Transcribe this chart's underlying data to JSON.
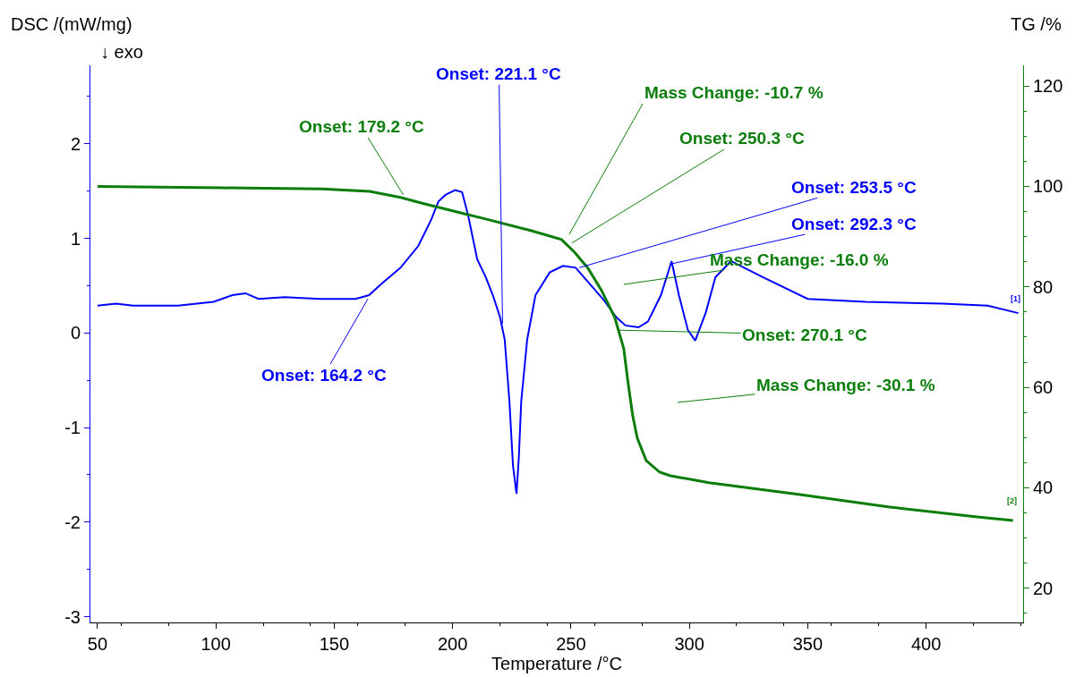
{
  "chart_data": {
    "type": "line",
    "xlabel": "Temperature /°C",
    "ylabel": "DSC /(mW/mg)",
    "y2label": "TG /%",
    "xlim": [
      47,
      441
    ],
    "xticks": [
      50,
      100,
      150,
      200,
      250,
      300,
      350,
      400
    ],
    "ylim": [
      -3.06,
      2.83
    ],
    "yticks": [
      -3,
      -2,
      -1,
      0,
      1,
      2
    ],
    "y2lim": [
      13.2,
      124.1
    ],
    "y2ticks": [
      20,
      40,
      60,
      80,
      100,
      120
    ],
    "grid": false,
    "marker": "none",
    "line_style": "solid",
    "series": [
      {
        "color": "#0000ff",
        "x": [
          50,
          57.8,
          65,
          84,
          99,
          107,
          112.5,
          118,
          129,
          144,
          159,
          164.7,
          170,
          178,
          185.5,
          191,
          194,
          197,
          201,
          204,
          206.5,
          210.4,
          214,
          217,
          220,
          222,
          224,
          225.5,
          227,
          228,
          229,
          231.5,
          235,
          241,
          246.6,
          252,
          257.9,
          263.5,
          269,
          273,
          278.5,
          282.5,
          288,
          292.5,
          295.6,
          299.4,
          302.5,
          307,
          311,
          317.6,
          331,
          350,
          374.5,
          407,
          426,
          439
        ],
        "values": [
          0.29,
          0.31,
          0.29,
          0.29,
          0.33,
          0.4,
          0.42,
          0.36,
          0.38,
          0.36,
          0.36,
          0.4,
          0.52,
          0.69,
          0.92,
          1.2,
          1.39,
          1.46,
          1.51,
          1.49,
          1.25,
          0.78,
          0.59,
          0.4,
          0.17,
          -0.07,
          -0.72,
          -1.4,
          -1.7,
          -1.3,
          -0.72,
          -0.07,
          0.4,
          0.64,
          0.71,
          0.69,
          0.52,
          0.36,
          0.17,
          0.08,
          0.06,
          0.12,
          0.4,
          0.76,
          0.4,
          0.03,
          -0.08,
          0.22,
          0.59,
          0.76,
          0.59,
          0.36,
          0.33,
          0.31,
          0.29,
          0.21
        ]
      },
      {
        "color": "#0a7d0a",
        "axis": "y2",
        "x": [
          50,
          103,
          145,
          165,
          178,
          187.5,
          198.5,
          214,
          233,
          246,
          251.5,
          257.2,
          262.9,
          268.5,
          272.3,
          274.2,
          276.1,
          278,
          281.8,
          287.5,
          292,
          308.3,
          346,
          384,
          421.6,
          436.7
        ],
        "values": [
          100,
          99.7,
          99.5,
          99,
          97.8,
          96.6,
          95.3,
          93.5,
          91.2,
          89.4,
          86.9,
          83.7,
          79.3,
          73.9,
          67.7,
          60.6,
          54.3,
          49.9,
          45.4,
          43.1,
          42.4,
          41,
          38.7,
          36.2,
          34.2,
          33.5
        ]
      }
    ],
    "annotations": [
      "↓ exo",
      {
        "text": "Onset: 221.1 °C",
        "x": 221.1,
        "y": 0.1
      },
      {
        "text": "Onset: 179.2 °C",
        "x": 179.2,
        "y": 1.46
      },
      {
        "text": "Onset: 164.2 °C",
        "x": 164.2,
        "y": 0.36
      },
      "Mass Change: -10.7 %",
      {
        "text": "Onset: 250.3 °C",
        "x": 250.3,
        "y": 0.95
      },
      {
        "text": "Onset: 253.5 °C",
        "x": 253.5,
        "y": 0.69
      },
      {
        "text": "Onset: 292.3 °C",
        "x": 292.3,
        "y": 0.73
      },
      "Mass Change: -16.0 %",
      {
        "text": "Onset: 270.1 °C",
        "x": 270.1,
        "y": 0.03
      },
      "Mass Change: -30.1 %",
      "[1]",
      "[2]"
    ]
  }
}
